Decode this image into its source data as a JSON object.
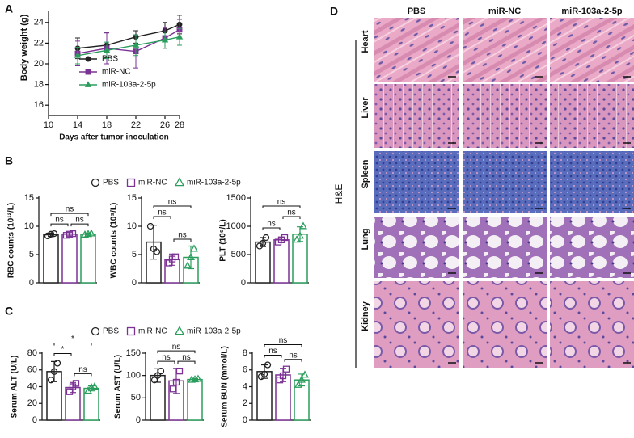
{
  "panels": [
    "A",
    "B",
    "C",
    "D"
  ],
  "legend_b": [
    "PBS",
    "miR-NC",
    "miR-103a-2-5p"
  ],
  "legend_c": [
    "PBS",
    "miR-NC",
    "miR-103a-2-5p"
  ],
  "chart_data": [
    {
      "type": "line",
      "xlabel": "Days after tumor inoculation",
      "ylabel": "Body weight (g)",
      "x": [
        14,
        18,
        22,
        26,
        28
      ],
      "xlim": [
        10,
        28
      ],
      "xticks": [
        10,
        14,
        18,
        22,
        26,
        28
      ],
      "ylim": [
        15,
        25
      ],
      "yticks": [
        16,
        18,
        20,
        22,
        24
      ],
      "series": [
        {
          "name": "PBS",
          "color": "#222222",
          "marker": "circle",
          "values": [
            21.5,
            21.8,
            22.6,
            23.2,
            23.8
          ],
          "errors": [
            1.0,
            1.2,
            0.6,
            0.8,
            0.9
          ]
        },
        {
          "name": "miR-NC",
          "color": "#7b3294",
          "marker": "square",
          "values": [
            21.0,
            21.5,
            21.2,
            22.5,
            23.3
          ],
          "errors": [
            1.2,
            1.5,
            1.6,
            1.0,
            1.0
          ]
        },
        {
          "name": "miR-103a-2-5p",
          "color": "#2a9d5c",
          "marker": "triangle",
          "values": [
            20.8,
            21.3,
            21.8,
            22.3,
            22.6
          ],
          "errors": [
            0.8,
            0.8,
            1.0,
            0.8,
            0.8
          ]
        }
      ]
    },
    {
      "type": "bar",
      "ylabel": "RBC counts (10¹²/L)",
      "ylim": [
        0,
        15
      ],
      "yticks": [
        0,
        5,
        10,
        15
      ],
      "colors": [
        "#222222",
        "#7b3294",
        "#2a9d5c"
      ],
      "markers": [
        "circle",
        "square",
        "triangle"
      ],
      "values": [
        8.5,
        8.6,
        8.6
      ],
      "errors": [
        0.3,
        0.3,
        0.2
      ],
      "points": [
        [
          8.3,
          8.6,
          8.7
        ],
        [
          8.4,
          8.6,
          8.7
        ],
        [
          8.5,
          8.6,
          8.7
        ]
      ],
      "significance": [
        "ns",
        "ns",
        "ns"
      ]
    },
    {
      "type": "bar",
      "ylabel": "WBC counts (10⁹/L)",
      "ylim": [
        0,
        15
      ],
      "yticks": [
        0,
        5,
        10,
        15
      ],
      "colors": [
        "#222222",
        "#7b3294",
        "#2a9d5c"
      ],
      "markers": [
        "circle",
        "square",
        "triangle"
      ],
      "values": [
        7.2,
        4.1,
        4.5
      ],
      "errors": [
        3.0,
        1.0,
        2.0
      ],
      "points": [
        [
          10,
          6,
          5.5
        ],
        [
          3.5,
          4.2,
          4.6
        ],
        [
          3,
          4.5,
          6
        ]
      ],
      "significance": [
        "ns",
        "ns",
        "ns"
      ]
    },
    {
      "type": "bar",
      "ylabel": "PLT (10⁹/L)",
      "ylim": [
        0,
        1500
      ],
      "yticks": [
        0,
        500,
        1000,
        1500
      ],
      "colors": [
        "#222222",
        "#7b3294",
        "#2a9d5c"
      ],
      "markers": [
        "circle",
        "square",
        "triangle"
      ],
      "values": [
        720,
        760,
        860
      ],
      "errors": [
        80,
        50,
        130
      ],
      "points": [
        [
          650,
          700,
          800
        ],
        [
          720,
          760,
          800
        ],
        [
          760,
          830,
          1000
        ]
      ],
      "significance": [
        "ns",
        "ns",
        "ns"
      ]
    },
    {
      "type": "bar",
      "ylabel": "Serum ALT (U/L)",
      "ylim": [
        0,
        80
      ],
      "yticks": [
        0,
        20,
        40,
        60,
        80
      ],
      "colors": [
        "#222222",
        "#7b3294",
        "#2a9d5c"
      ],
      "markers": [
        "circle",
        "square",
        "triangle"
      ],
      "values": [
        58,
        39,
        38
      ],
      "errors": [
        12,
        6,
        3
      ],
      "points": [
        [
          48,
          58,
          68
        ],
        [
          34,
          40,
          44
        ],
        [
          35,
          39,
          40
        ]
      ],
      "significance": [
        "*",
        "ns",
        "*"
      ]
    },
    {
      "type": "bar",
      "ylabel": "Serum AST (U/L)",
      "ylim": [
        0,
        150
      ],
      "yticks": [
        0,
        50,
        100,
        150
      ],
      "colors": [
        "#222222",
        "#7b3294",
        "#2a9d5c"
      ],
      "markers": [
        "circle",
        "square",
        "triangle"
      ],
      "values": [
        100,
        88,
        91
      ],
      "errors": [
        15,
        28,
        2
      ],
      "points": [
        [
          90,
          100,
          110
        ],
        [
          70,
          85,
          110
        ],
        [
          90,
          91,
          92
        ]
      ],
      "significance": [
        "ns",
        "ns",
        "ns"
      ]
    },
    {
      "type": "bar",
      "ylabel": "Serum BUN (mmol/L)",
      "ylim": [
        0,
        8
      ],
      "yticks": [
        0,
        2,
        4,
        6,
        8
      ],
      "colors": [
        "#222222",
        "#7b3294",
        "#2a9d5c"
      ],
      "markers": [
        "circle",
        "square",
        "triangle"
      ],
      "values": [
        5.8,
        5.4,
        4.8
      ],
      "errors": [
        0.8,
        0.8,
        0.7
      ],
      "points": [
        [
          5.2,
          5.5,
          6.6
        ],
        [
          4.8,
          5.3,
          6.1
        ],
        [
          4.2,
          4.8,
          5.4
        ]
      ],
      "significance": [
        "ns",
        "ns",
        "ns"
      ]
    }
  ],
  "histology": {
    "columns": [
      "PBS",
      "miR-NC",
      "miR-103a-2-5p"
    ],
    "rows": [
      "Heart",
      "Liver",
      "Spleen",
      "Lung",
      "Kidney"
    ],
    "stain": "H&E"
  }
}
